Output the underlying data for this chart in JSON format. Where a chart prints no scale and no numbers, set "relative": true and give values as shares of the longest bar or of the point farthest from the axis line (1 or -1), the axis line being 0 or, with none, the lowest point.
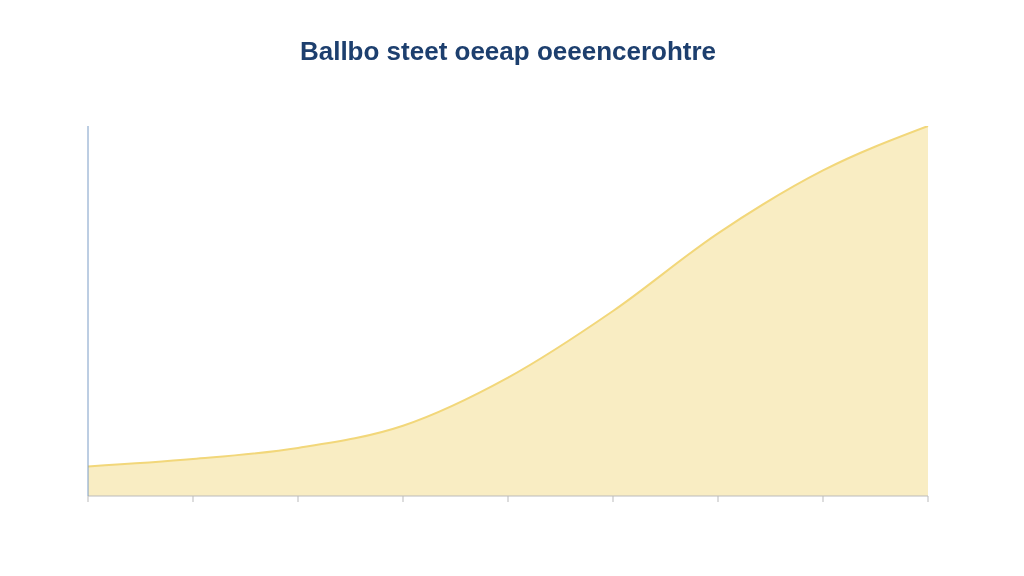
{
  "chart_data": {
    "type": "area",
    "title": "Ballbo steet oeeap oeeencerohtre",
    "relative": true,
    "categories": [
      null,
      null,
      null,
      null,
      null,
      null,
      null,
      null,
      null
    ],
    "series": [
      {
        "color": "#f2d77a",
        "values": [
          0.08,
          0.1,
          0.13,
          0.19,
          0.32,
          0.5,
          0.71,
          0.88,
          1
        ]
      }
    ],
    "legend": false
  }
}
